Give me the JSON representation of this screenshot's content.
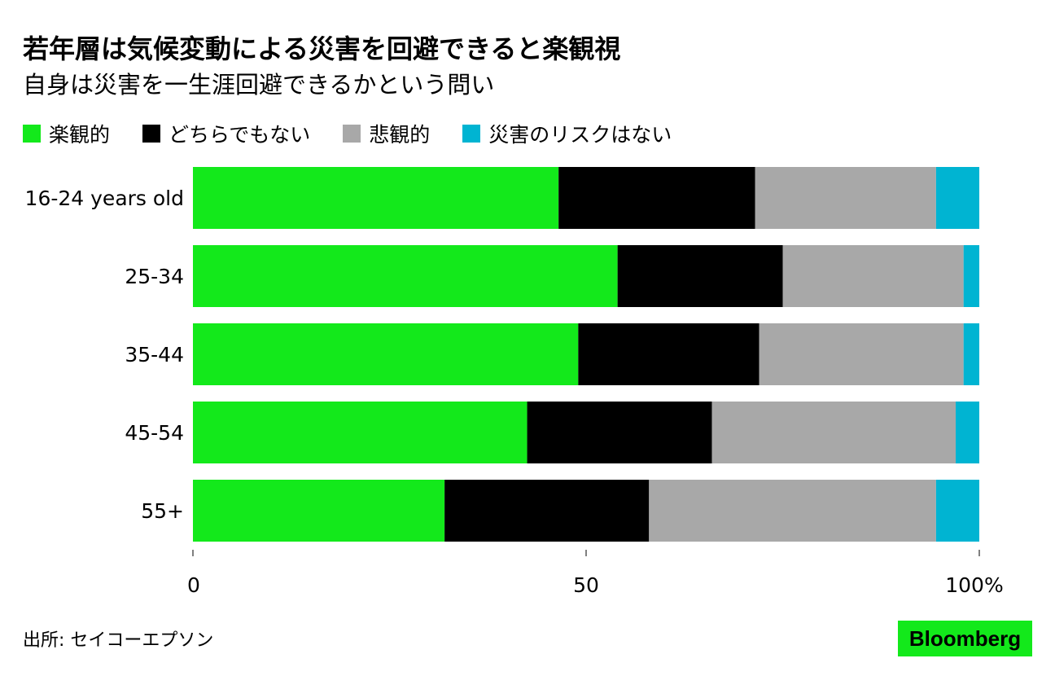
{
  "title": "若年層は気候変動による災害を回避できると楽観視",
  "subtitle": "自身は災害を一生涯回避できるかという問い",
  "source": "出所: セイコーエプソン",
  "logo": "Bloomberg",
  "colors": {
    "optimistic": "#13e91b",
    "neither": "#000000",
    "pessimistic": "#a8a8a8",
    "no_risk": "#00b4d2"
  },
  "chart_data": {
    "type": "bar",
    "orientation": "horizontal",
    "stacked": true,
    "categories": [
      "16-24 years old",
      "25-34",
      "35-44",
      "45-54",
      "55+"
    ],
    "series": [
      {
        "name": "楽観的",
        "color": "#13e91b",
        "values": [
          46.5,
          54,
          49,
          42.5,
          32
        ]
      },
      {
        "name": "どちらでもない",
        "color": "#000000",
        "values": [
          25,
          21,
          23,
          23.5,
          26
        ]
      },
      {
        "name": "悲観的",
        "color": "#a8a8a8",
        "values": [
          23,
          23,
          26,
          31,
          36.5
        ]
      },
      {
        "name": "災害のリスクはない",
        "color": "#00b4d2",
        "values": [
          5.5,
          2,
          2,
          3,
          5.5
        ]
      }
    ],
    "xlim": [
      0,
      100
    ],
    "xticks": [
      0,
      50,
      100
    ],
    "xtick_labels": [
      "0",
      "50",
      "100%"
    ],
    "legend": "top-left",
    "grid": false
  }
}
